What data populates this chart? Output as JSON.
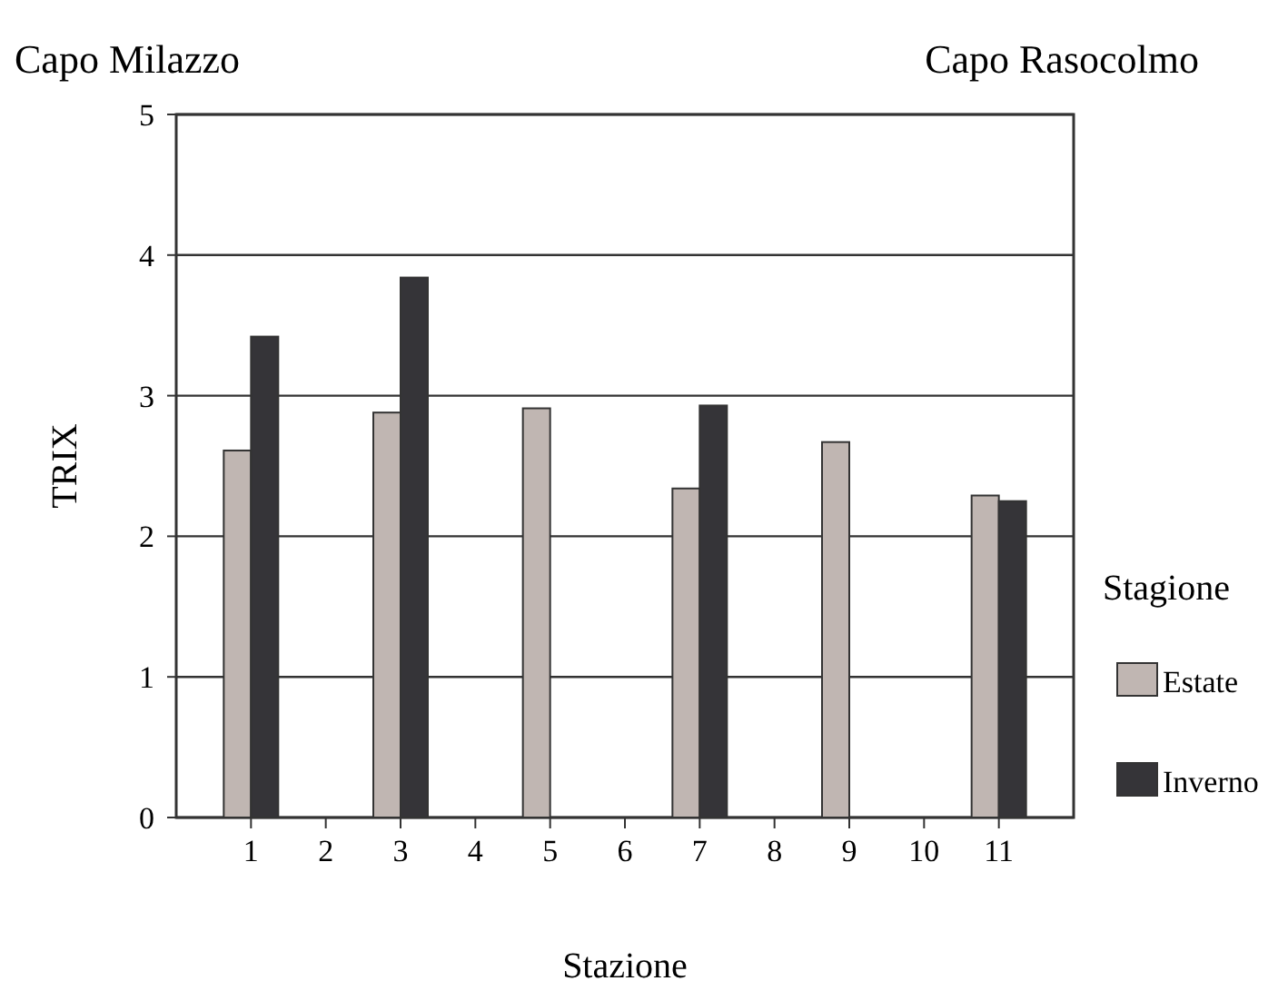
{
  "chart_data": {
    "type": "bar",
    "xlabel": "Stazione",
    "ylabel": "TRIX",
    "legend_title": "Stagione",
    "annotations": [
      "Capo Milazzo",
      "Capo Rasocolmo"
    ],
    "categories": [
      "1",
      "2",
      "3",
      "4",
      "5",
      "6",
      "7",
      "8",
      "9",
      "10",
      "11"
    ],
    "series": [
      {
        "name": "Estate",
        "color": "#c0b6b2",
        "values": [
          2.61,
          null,
          2.88,
          null,
          2.91,
          null,
          2.34,
          null,
          2.67,
          null,
          2.29
        ]
      },
      {
        "name": "Inverno",
        "color": "#353438",
        "values": [
          3.42,
          null,
          3.84,
          null,
          null,
          null,
          2.93,
          null,
          null,
          null,
          2.25
        ]
      }
    ],
    "ylim": [
      0,
      5
    ],
    "yticks": [
      0,
      1,
      2,
      3,
      4,
      5
    ],
    "grid": "y",
    "legend": "right"
  }
}
